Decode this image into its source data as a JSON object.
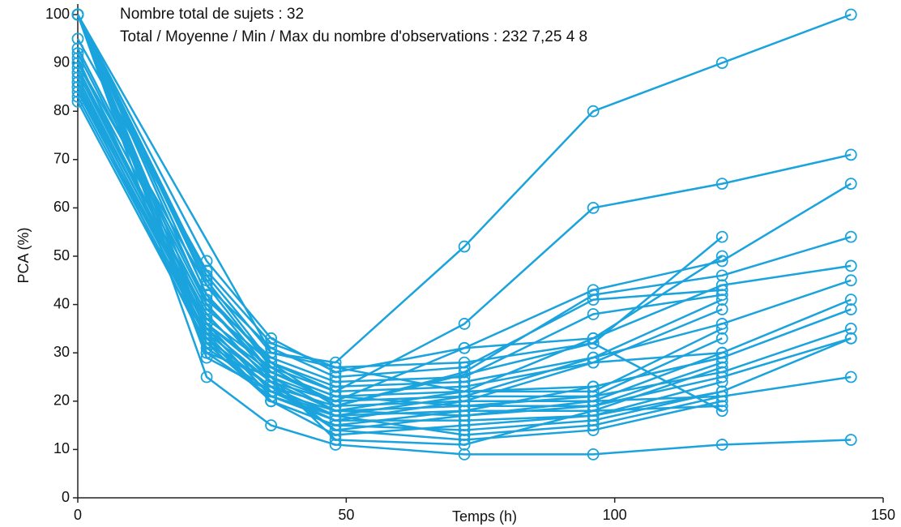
{
  "chart_data": {
    "type": "line",
    "annotations": [
      "Nombre total de sujets : 32",
      "Total / Moyenne / Min / Max du nombre d'observations : 232   7,25   4   8"
    ],
    "x_label": "Temps (h)",
    "y_label": "PCA (%)",
    "xlim": [
      0,
      150
    ],
    "ylim": [
      0,
      100
    ],
    "xticks": [
      0,
      50,
      100,
      150
    ],
    "yticks": [
      0,
      10,
      20,
      30,
      40,
      50,
      60,
      70,
      80,
      90,
      100
    ],
    "color": "#1aa3dc",
    "marker": "open-circle",
    "series": [
      {
        "x": [
          0,
          24,
          36,
          48,
          72,
          96,
          120,
          144
        ],
        "values": [
          100,
          46,
          30,
          28,
          52,
          80,
          90,
          100
        ]
      },
      {
        "x": [
          0,
          24,
          36,
          48,
          72,
          96,
          120,
          144
        ],
        "values": [
          100,
          45,
          28,
          22,
          36,
          60,
          65,
          71
        ]
      },
      {
        "x": [
          0,
          24,
          36,
          48,
          72,
          96,
          120,
          144
        ],
        "values": [
          92,
          40,
          25,
          20,
          31,
          43,
          49,
          65
        ]
      },
      {
        "x": [
          0,
          24,
          36,
          48,
          72,
          96,
          120,
          144
        ],
        "values": [
          90,
          44,
          27,
          19,
          26,
          42,
          46,
          54
        ]
      },
      {
        "x": [
          0,
          24,
          36,
          48,
          72,
          96,
          120,
          144
        ],
        "values": [
          88,
          38,
          24,
          18,
          22,
          33,
          44,
          48
        ]
      },
      {
        "x": [
          0,
          24,
          36,
          48,
          72,
          96,
          120,
          144
        ],
        "values": [
          86,
          36,
          22,
          17,
          21,
          29,
          36,
          45
        ]
      },
      {
        "x": [
          0,
          24,
          36,
          48,
          72,
          96,
          120,
          144
        ],
        "values": [
          85,
          35,
          21,
          16,
          20,
          28,
          30,
          41
        ]
      },
      {
        "x": [
          0,
          24,
          36,
          48,
          72,
          96,
          120,
          144
        ],
        "values": [
          84,
          34,
          20,
          15,
          18,
          23,
          29,
          39
        ]
      },
      {
        "x": [
          0,
          24,
          36,
          48,
          72,
          96,
          120,
          144
        ],
        "values": [
          100,
          42,
          26,
          21,
          19,
          21,
          26,
          35
        ]
      },
      {
        "x": [
          0,
          24,
          36,
          48,
          72,
          96,
          120,
          144
        ],
        "values": [
          83,
          33,
          23,
          14,
          17,
          19,
          25,
          33
        ]
      },
      {
        "x": [
          0,
          24,
          36,
          48,
          72,
          96,
          120,
          144
        ],
        "values": [
          82,
          32,
          20,
          13,
          15,
          17,
          22,
          33
        ]
      },
      {
        "x": [
          0,
          24,
          36,
          48,
          72,
          96,
          120,
          144
        ],
        "values": [
          100,
          30,
          25,
          18,
          17,
          20,
          21,
          25
        ]
      },
      {
        "x": [
          0,
          24,
          36,
          48,
          72,
          96,
          120,
          144
        ],
        "values": [
          100,
          25,
          15,
          11,
          9,
          9,
          11,
          12
        ]
      },
      {
        "x": [
          0,
          24,
          36,
          48,
          72,
          96,
          120
        ],
        "values": [
          100,
          49,
          33,
          26,
          31,
          33,
          50
        ]
      },
      {
        "x": [
          0,
          24,
          36,
          48,
          72,
          96,
          120
        ],
        "values": [
          95,
          47,
          32,
          27,
          28,
          32,
          54
        ]
      },
      {
        "x": [
          0,
          24,
          36,
          48,
          72,
          96,
          120
        ],
        "values": [
          100,
          44,
          31,
          25,
          27,
          41,
          43
        ]
      },
      {
        "x": [
          0,
          24,
          36,
          48,
          72,
          96,
          120
        ],
        "values": [
          93,
          41,
          29,
          24,
          25,
          38,
          42
        ]
      },
      {
        "x": [
          0,
          24,
          36,
          48,
          72,
          96,
          120
        ],
        "values": [
          90,
          39,
          28,
          23,
          24,
          29,
          41
        ]
      },
      {
        "x": [
          0,
          24,
          36,
          48,
          72,
          96,
          120
        ],
        "values": [
          89,
          37,
          27,
          22,
          23,
          28,
          39
        ]
      },
      {
        "x": [
          0,
          24,
          36,
          48,
          72,
          96,
          120
        ],
        "values": [
          88,
          36,
          26,
          21,
          22,
          22,
          35
        ]
      },
      {
        "x": [
          0,
          24,
          36,
          48,
          72,
          96,
          120
        ],
        "values": [
          87,
          35,
          24,
          20,
          21,
          21,
          33
        ]
      },
      {
        "x": [
          0,
          24,
          36,
          48,
          72,
          96,
          120
        ],
        "values": [
          86,
          33,
          23,
          19,
          20,
          20,
          30
        ]
      },
      {
        "x": [
          0,
          24,
          36,
          48,
          72,
          96,
          120
        ],
        "values": [
          85,
          31,
          22,
          18,
          19,
          19,
          28
        ]
      },
      {
        "x": [
          0,
          24,
          36,
          48,
          72,
          96,
          120
        ],
        "values": [
          100,
          30,
          21,
          17,
          18,
          18,
          27
        ]
      },
      {
        "x": [
          0,
          24,
          36,
          48,
          72,
          96,
          120
        ],
        "values": [
          100,
          29,
          22,
          16,
          16,
          17,
          24
        ]
      },
      {
        "x": [
          0,
          24,
          36,
          48,
          72,
          96,
          120
        ],
        "values": [
          91,
          33,
          20,
          15,
          14,
          16,
          22
        ]
      },
      {
        "x": [
          0,
          24,
          36,
          48,
          72,
          96,
          120
        ],
        "values": [
          100,
          32,
          23,
          17,
          13,
          15,
          21
        ]
      },
      {
        "x": [
          0,
          24,
          36,
          48,
          72,
          96,
          120
        ],
        "values": [
          100,
          34,
          24,
          14,
          12,
          14,
          20
        ]
      },
      {
        "x": [
          0,
          24,
          36,
          48,
          72,
          96,
          120
        ],
        "values": [
          100,
          36,
          25,
          12,
          11,
          18,
          19
        ]
      },
      {
        "x": [
          0,
          24,
          36,
          48
        ],
        "values": [
          100,
          40,
          26,
          20
        ]
      },
      {
        "x": [
          0,
          24,
          36,
          48,
          96,
          120
        ],
        "values": [
          100,
          42,
          28,
          19,
          32,
          18
        ]
      },
      {
        "x": [
          0,
          36,
          48,
          72,
          96,
          120
        ],
        "values": [
          100,
          30,
          27,
          22,
          23,
          29
        ]
      }
    ]
  }
}
